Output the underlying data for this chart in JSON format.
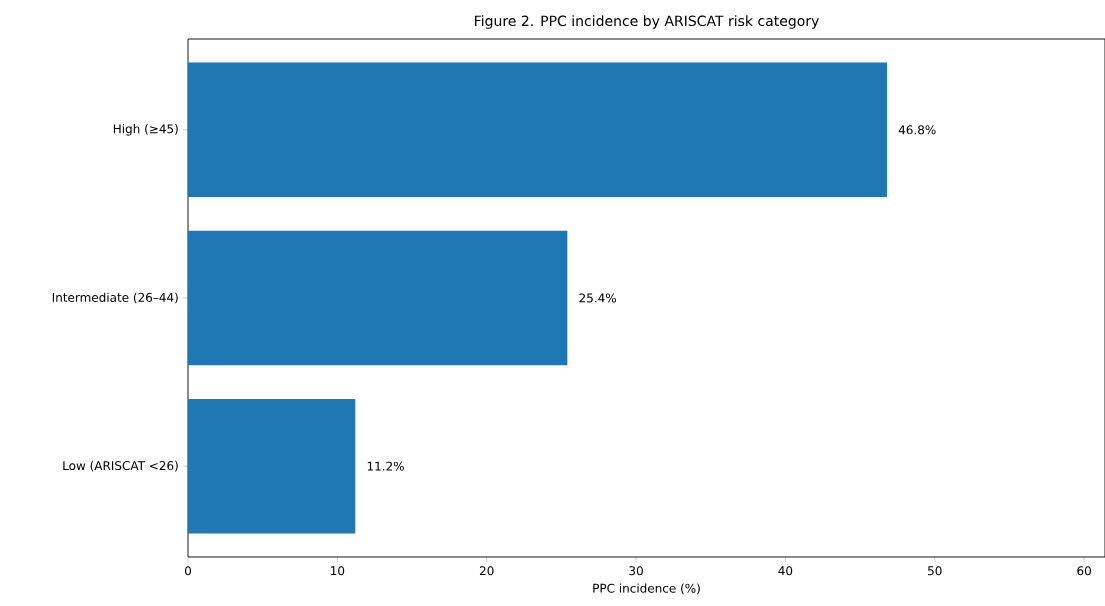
{
  "chart_data": {
    "type": "bar",
    "orientation": "horizontal",
    "title": "Figure 2. PPC incidence by ARISCAT risk category",
    "xlabel": "PPC incidence (%)",
    "categories": [
      "High (≥45)",
      "Intermediate (26–44)",
      "Low (ARISCAT <26)"
    ],
    "values": [
      46.8,
      25.4,
      11.2
    ],
    "value_labels": [
      "46.8%",
      "25.4%",
      "11.2%"
    ],
    "color": "#1f77b4",
    "xlim": [
      0,
      61.4
    ],
    "xticks": [
      0,
      10,
      20,
      30,
      40,
      50,
      60
    ]
  }
}
